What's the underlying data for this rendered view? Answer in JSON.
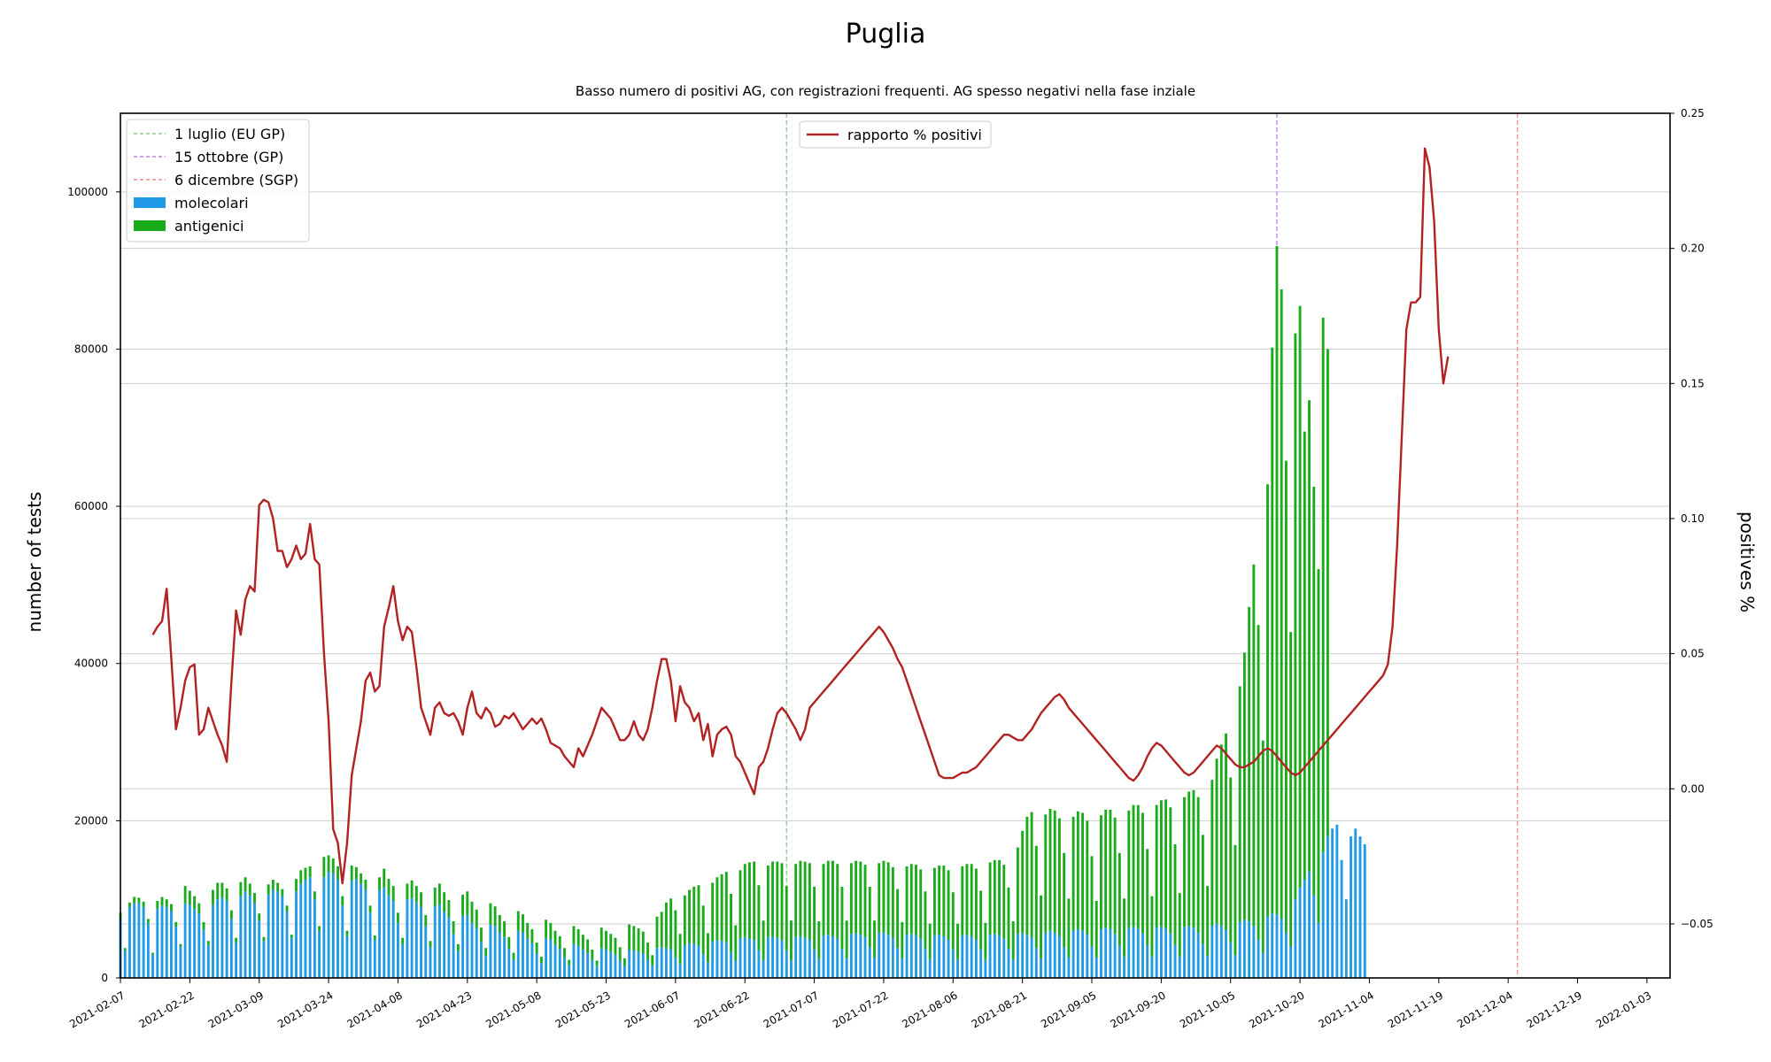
{
  "chart_data": {
    "type": "bar",
    "title": "Puglia",
    "subtitle": "Basso numero di positivi AG, con registrazioni frequenti. AG spesso negativi nella fase inziale",
    "ylabel": "number of tests",
    "y2label": "positives %",
    "ylim": [
      0,
      110000
    ],
    "y2lim": [
      -0.07,
      0.25
    ],
    "y_ticks": [
      0,
      20000,
      40000,
      60000,
      80000,
      100000
    ],
    "y_tick_labels": [
      "0",
      "20000",
      "40000",
      "60000",
      "80000",
      "100000"
    ],
    "y2_ticks": [
      -0.05,
      0.0,
      0.05,
      0.1,
      0.15,
      0.2,
      0.25
    ],
    "y2_tick_labels": [
      "−0.05",
      "0.00",
      "0.05",
      "0.10",
      "0.15",
      "0.20",
      "0.25"
    ],
    "x_start": "2021-02-07",
    "x_end": "2022-01-08",
    "x_tick_labels": [
      "2021-02-07",
      "2021-02-22",
      "2021-03-09",
      "2021-03-24",
      "2021-04-08",
      "2021-04-23",
      "2021-05-08",
      "2021-05-23",
      "2021-06-07",
      "2021-06-22",
      "2021-07-07",
      "2021-07-22",
      "2021-08-06",
      "2021-08-21",
      "2021-09-05",
      "2021-09-20",
      "2021-10-05",
      "2021-10-20",
      "2021-11-04",
      "2021-11-19",
      "2021-12-04",
      "2021-12-19",
      "2022-01-03"
    ],
    "grid": "horizontal",
    "legend_left_position": "top-left",
    "legend_right_position": "top-center",
    "vlines": [
      {
        "date": "2021-07-01",
        "label": "1 luglio (EU GP)",
        "color": "#90c890"
      },
      {
        "date": "2021-10-15",
        "label": "15 ottobre (GP)",
        "color": "#c080e0"
      },
      {
        "date": "2021-12-06",
        "label": "6 dicembre (SGP)",
        "color": "#f08c8c"
      }
    ],
    "series": [
      {
        "name": "molecolari",
        "color": "#1f9ae6",
        "stack": "tests",
        "values": [
          7500,
          3500,
          9000,
          9500,
          9500,
          9000,
          7000,
          3000,
          8800,
          9200,
          9000,
          8500,
          6500,
          4000,
          9500,
          9300,
          8800,
          8200,
          6200,
          4200,
          9300,
          10000,
          10200,
          9800,
          7500,
          4500,
          10400,
          11000,
          10500,
          9500,
          7300,
          4700,
          10600,
          11200,
          11000,
          10400,
          8500,
          5100,
          11000,
          12000,
          12500,
          12800,
          10000,
          6000,
          12800,
          13500,
          13300,
          12500,
          9200,
          5300,
          12400,
          12600,
          12000,
          11300,
          8300,
          4900,
          11200,
          11500,
          10500,
          9800,
          7000,
          4300,
          10000,
          10100,
          9600,
          9000,
          6600,
          3900,
          9100,
          9300,
          8400,
          7700,
          5600,
          3400,
          7900,
          8000,
          7000,
          6300,
          4600,
          2800,
          6800,
          6600,
          5800,
          5200,
          3700,
          2300,
          6000,
          5800,
          5000,
          4400,
          3100,
          1900,
          5100,
          4900,
          4200,
          3700,
          2600,
          1600,
          4300,
          4100,
          3600,
          3200,
          2300,
          1500,
          3800,
          3600,
          3300,
          3000,
          2200,
          1500,
          3600,
          3500,
          3300,
          3100,
          2300,
          1600,
          3800,
          3900,
          3800,
          3600,
          2600,
          1800,
          4200,
          4400,
          4300,
          4100,
          3000,
          2000,
          4600,
          4800,
          4700,
          4500,
          3300,
          2200,
          5000,
          5200,
          5000,
          4800,
          3500,
          2300,
          5200,
          5300,
          5100,
          4800,
          3500,
          2300,
          5200,
          5300,
          5100,
          4900,
          3600,
          2400,
          5400,
          5500,
          5300,
          5000,
          3700,
          2500,
          5600,
          5700,
          5500,
          5200,
          3900,
          2600,
          5700,
          5800,
          5500,
          5100,
          3800,
          2500,
          5500,
          5600,
          5400,
          5000,
          3700,
          2400,
          5400,
          5500,
          5300,
          4900,
          3600,
          2400,
          5400,
          5500,
          5300,
          4900,
          3600,
          2400,
          5500,
          5600,
          5400,
          5000,
          3700,
          2400,
          5600,
          5700,
          5500,
          5100,
          3800,
          2500,
          5800,
          6000,
          5800,
          5300,
          3900,
          2600,
          6000,
          6200,
          6000,
          5500,
          4000,
          2600,
          6200,
          6400,
          6200,
          5600,
          4100,
          2700,
          6300,
          6500,
          6300,
          5700,
          4200,
          2700,
          6400,
          6500,
          6300,
          5700,
          4200,
          2700,
          6500,
          6600,
          6400,
          5800,
          4300,
          2800,
          6700,
          6900,
          6700,
          6100,
          4500,
          2900,
          7100,
          7400,
          7200,
          6600,
          4900,
          3200,
          7800,
          8200,
          8100,
          7600,
          5800,
          4000,
          10000,
          11500,
          12500,
          13500,
          10500,
          7000,
          16000,
          18000,
          19000,
          19500,
          15000,
          10000,
          18000,
          19000,
          18000,
          17000
        ],
        "values_note": ""
      },
      {
        "name": "antigenici",
        "color": "#19ab19",
        "stack": "tests",
        "values": [
          800,
          300,
          600,
          800,
          700,
          700,
          500,
          200,
          1000,
          1100,
          1000,
          900,
          600,
          300,
          2200,
          1800,
          1600,
          1300,
          900,
          500,
          1900,
          2100,
          1900,
          1600,
          1100,
          600,
          1800,
          1800,
          1500,
          1300,
          900,
          500,
          1300,
          1300,
          1100,
          900,
          700,
          400,
          1600,
          1700,
          1500,
          1400,
          1000,
          600,
          2600,
          2100,
          1900,
          1700,
          1200,
          700,
          1900,
          1500,
          1300,
          1200,
          900,
          500,
          1600,
          2400,
          2100,
          1900,
          1300,
          800,
          2000,
          2300,
          2100,
          1900,
          1400,
          800,
          2400,
          2700,
          2500,
          2200,
          1600,
          900,
          2700,
          3000,
          2700,
          2400,
          1800,
          1000,
          2700,
          2500,
          2200,
          2000,
          1500,
          900,
          2500,
          2300,
          2000,
          1800,
          1400,
          800,
          2300,
          2100,
          1800,
          1600,
          1200,
          700,
          2300,
          2100,
          1900,
          1700,
          1300,
          700,
          2600,
          2400,
          2300,
          2100,
          1700,
          1000,
          3200,
          3100,
          3000,
          2800,
          2200,
          1300,
          4000,
          4500,
          5800,
          6500,
          6000,
          3800,
          6300,
          6800,
          7300,
          7700,
          6200,
          3700,
          7500,
          8000,
          8500,
          9000,
          7400,
          4500,
          8700,
          9300,
          9700,
          10000,
          8300,
          5000,
          9100,
          9500,
          9700,
          9800,
          8200,
          5000,
          9300,
          9600,
          9700,
          9700,
          8000,
          4800,
          9100,
          9400,
          9600,
          9500,
          7900,
          4800,
          9000,
          9200,
          9300,
          9200,
          7700,
          4700,
          8900,
          9100,
          9200,
          9000,
          7500,
          4600,
          8700,
          8900,
          9000,
          8800,
          7300,
          4500,
          8600,
          8800,
          9000,
          8800,
          7300,
          4500,
          8800,
          9000,
          9200,
          9000,
          7500,
          4600,
          9200,
          9400,
          9600,
          9400,
          7800,
          4800,
          11000,
          13000,
          15000,
          16000,
          13000,
          8000,
          15000,
          15500,
          15500,
          15000,
          12000,
          7500,
          14500,
          15000,
          15000,
          14500,
          11500,
          7200,
          14500,
          15000,
          15200,
          14800,
          11800,
          7400,
          15000,
          15500,
          15700,
          15300,
          12200,
          7700,
          15600,
          16100,
          16400,
          16000,
          12800,
          8100,
          16500,
          17100,
          17500,
          17200,
          13900,
          8900,
          18500,
          21000,
          23000,
          25000,
          21000,
          14000,
          30000,
          34000,
          40000,
          46000,
          40000,
          27000,
          55000,
          72000,
          85000,
          80000,
          60000,
          40000,
          72000,
          74000,
          57000,
          60000,
          52000,
          45000,
          68000,
          62000
        ]
      },
      {
        "name": "rapporto % positivi",
        "color": "#b22222",
        "type": "line",
        "axis": "right",
        "start": "2021-02-14",
        "values": [
          0.057,
          0.06,
          0.062,
          0.074,
          0.048,
          0.022,
          0.03,
          0.04,
          0.045,
          0.046,
          0.02,
          0.022,
          0.03,
          0.025,
          0.02,
          0.016,
          0.01,
          0.04,
          0.066,
          0.057,
          0.07,
          0.075,
          0.073,
          0.105,
          0.107,
          0.106,
          0.1,
          0.088,
          0.088,
          0.082,
          0.085,
          0.09,
          0.085,
          0.087,
          0.098,
          0.085,
          0.083,
          0.05,
          0.025,
          -0.015,
          -0.02,
          -0.035,
          -0.02,
          0.005,
          0.015,
          0.025,
          0.04,
          0.043,
          0.036,
          0.038,
          0.06,
          0.067,
          0.075,
          0.062,
          0.055,
          0.06,
          0.058,
          0.045,
          0.03,
          0.025,
          0.02,
          0.03,
          0.032,
          0.028,
          0.027,
          0.028,
          0.025,
          0.02,
          0.03,
          0.036,
          0.028,
          0.026,
          0.03,
          0.028,
          0.023,
          0.024,
          0.027,
          0.026,
          0.028,
          0.025,
          0.022,
          0.024,
          0.026,
          0.024,
          0.026,
          0.022,
          0.017,
          0.016,
          0.015,
          0.012,
          0.01,
          0.008,
          0.015,
          0.012,
          0.016,
          0.02,
          0.025,
          0.03,
          0.028,
          0.026,
          0.022,
          0.018,
          0.018,
          0.02,
          0.025,
          0.02,
          0.018,
          0.022,
          0.03,
          0.04,
          0.048,
          0.048,
          0.04,
          0.025,
          0.038,
          0.032,
          0.03,
          0.025,
          0.028,
          0.018,
          0.024,
          0.012,
          0.02,
          0.022,
          0.023,
          0.02,
          0.012,
          0.01,
          0.006,
          0.002,
          -0.002,
          0.008,
          0.01,
          0.015,
          0.022,
          0.028,
          0.03,
          0.028,
          0.025,
          0.022,
          0.018,
          0.022,
          0.03,
          0.032,
          0.034,
          0.036,
          0.038,
          0.04,
          0.042,
          0.044,
          0.046,
          0.048,
          0.05,
          0.052,
          0.054,
          0.056,
          0.058,
          0.06,
          0.058,
          0.055,
          0.052,
          0.048,
          0.045,
          0.04,
          0.035,
          0.03,
          0.025,
          0.02,
          0.015,
          0.01,
          0.005,
          0.004,
          0.004,
          0.004,
          0.005,
          0.006,
          0.006,
          0.007,
          0.008,
          0.01,
          0.012,
          0.014,
          0.016,
          0.018,
          0.02,
          0.02,
          0.019,
          0.018,
          0.018,
          0.02,
          0.022,
          0.025,
          0.028,
          0.03,
          0.032,
          0.034,
          0.035,
          0.033,
          0.03,
          0.028,
          0.026,
          0.024,
          0.022,
          0.02,
          0.018,
          0.016,
          0.014,
          0.012,
          0.01,
          0.008,
          0.006,
          0.004,
          0.003,
          0.005,
          0.008,
          0.012,
          0.015,
          0.017,
          0.016,
          0.014,
          0.012,
          0.01,
          0.008,
          0.006,
          0.005,
          0.006,
          0.008,
          0.01,
          0.012,
          0.014,
          0.016,
          0.015,
          0.013,
          0.011,
          0.009,
          0.008,
          0.008,
          0.009,
          0.01,
          0.012,
          0.014,
          0.015,
          0.014,
          0.012,
          0.01,
          0.008,
          0.006,
          0.005,
          0.006,
          0.008,
          0.01,
          0.012,
          0.014,
          0.016,
          0.018,
          0.02,
          0.022,
          0.024,
          0.026,
          0.028,
          0.03,
          0.032,
          0.034,
          0.036,
          0.038,
          0.04,
          0.042,
          0.046,
          0.06,
          0.09,
          0.13,
          0.17,
          0.18,
          0.18,
          0.182,
          0.237,
          0.23,
          0.21,
          0.17,
          0.15,
          0.16
        ]
      }
    ]
  }
}
